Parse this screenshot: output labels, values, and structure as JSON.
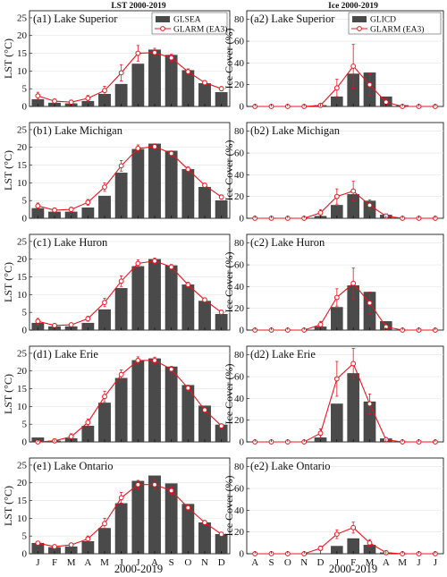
{
  "figure": {
    "left_column_title": "LST 2000-2019",
    "right_column_title": "Ice 2000-2019",
    "left_xlabel": "2000-2019",
    "right_xlabel": "2000-2019",
    "left_ylabel": "LST (°C)",
    "right_ylabel": "Ice Cover (%)",
    "lst_legend_bar": "GLSEA",
    "lst_legend_line": "GLARM (EA3)",
    "ice_legend_bar": "GLICD",
    "ice_legend_line": "GLARM (EA3)",
    "lst_months": [
      "J",
      "F",
      "M",
      "A",
      "M",
      "J",
      "J",
      "A",
      "S",
      "O",
      "N",
      "D"
    ],
    "ice_months": [
      "A",
      "S",
      "O",
      "N",
      "D",
      "J",
      "F",
      "M",
      "A",
      "M",
      "J",
      "J"
    ],
    "lst_yticks": [
      0,
      5,
      10,
      15,
      20,
      25
    ],
    "ice_yticks": [
      0,
      20,
      40,
      60,
      80
    ],
    "colors": {
      "bar": "#4a4a4a",
      "line": "#e8141b"
    }
  },
  "chart_data": [
    {
      "type": "bar",
      "title": "(a1) Lake Superior",
      "categories": [
        "J",
        "F",
        "M",
        "A",
        "M",
        "J",
        "J",
        "A",
        "S",
        "O",
        "N",
        "D"
      ],
      "ylabel": "LST (°C)",
      "ylim": [
        0,
        27
      ],
      "legend": "top-right",
      "series": [
        {
          "name": "GLSEA",
          "values": [
            2.0,
            1.0,
            0.8,
            1.5,
            3.5,
            6.3,
            12.0,
            16.0,
            14.5,
            10.2,
            6.5,
            4.0
          ]
        },
        {
          "name": "GLARM (EA3)",
          "values": [
            3.0,
            1.5,
            1.2,
            2.3,
            4.5,
            9.5,
            15.0,
            15.2,
            13.7,
            9.8,
            6.7,
            5.0
          ],
          "errors": [
            1.0,
            0.6,
            0.6,
            0.8,
            1.2,
            2.3,
            2.2,
            1.2,
            1.0,
            0.8,
            0.6,
            0.6
          ]
        }
      ]
    },
    {
      "type": "bar",
      "title": "(a2) Lake Superior",
      "categories": [
        "A",
        "S",
        "O",
        "N",
        "D",
        "J",
        "F",
        "M",
        "A",
        "M",
        "J",
        "J"
      ],
      "ylabel": "Ice Cover (%)",
      "ylim": [
        0,
        88
      ],
      "legend": "top-right",
      "series": [
        {
          "name": "GLICD",
          "values": [
            0,
            0,
            0,
            0,
            1,
            9,
            30,
            31,
            9,
            1,
            0,
            0
          ]
        },
        {
          "name": "GLARM (EA3)",
          "values": [
            0,
            0,
            0,
            0,
            1,
            17,
            37,
            20,
            4,
            0,
            0,
            0
          ],
          "errors": [
            0,
            0,
            0,
            0,
            1,
            8,
            20,
            10,
            3,
            0,
            0,
            0
          ]
        }
      ]
    },
    {
      "type": "bar",
      "title": "(b1) Lake Michigan",
      "categories": [
        "J",
        "F",
        "M",
        "A",
        "M",
        "J",
        "J",
        "A",
        "S",
        "O",
        "N",
        "D"
      ],
      "ylabel": "LST (°C)",
      "ylim": [
        0,
        27
      ],
      "series": [
        {
          "values": [
            2.8,
            1.8,
            1.8,
            3.0,
            6.3,
            12.8,
            19.5,
            21.0,
            19.0,
            13.8,
            8.8,
            5.0
          ]
        },
        {
          "values": [
            3.5,
            2.3,
            2.5,
            4.5,
            8.8,
            14.8,
            19.7,
            20.2,
            18.3,
            13.8,
            9.3,
            6.0
          ],
          "errors": [
            0.8,
            0.6,
            0.6,
            0.8,
            1.2,
            1.5,
            1.0,
            0.8,
            0.7,
            0.7,
            0.6,
            0.6
          ]
        }
      ]
    },
    {
      "type": "bar",
      "title": "(b2) Lake Michigan",
      "categories": [
        "A",
        "S",
        "O",
        "N",
        "D",
        "J",
        "F",
        "M",
        "A",
        "M",
        "J",
        "J"
      ],
      "ylabel": "Ice Cover (%)",
      "ylim": [
        0,
        88
      ],
      "series": [
        {
          "values": [
            0,
            0,
            0,
            0,
            2,
            12,
            22,
            16,
            3,
            0,
            0,
            0
          ]
        },
        {
          "values": [
            0,
            0,
            0,
            0,
            5,
            20,
            25,
            12,
            2,
            0,
            0,
            0
          ],
          "errors": [
            0,
            0,
            0,
            0,
            3,
            7,
            9,
            5,
            2,
            0,
            0,
            0
          ]
        }
      ]
    },
    {
      "type": "bar",
      "title": "(c1) Lake Huron",
      "categories": [
        "J",
        "F",
        "M",
        "A",
        "M",
        "J",
        "J",
        "A",
        "S",
        "O",
        "N",
        "D"
      ],
      "ylabel": "LST (°C)",
      "ylim": [
        0,
        27
      ],
      "series": [
        {
          "values": [
            2.0,
            1.0,
            1.0,
            2.0,
            5.8,
            11.8,
            18.0,
            20.0,
            18.2,
            12.8,
            8.2,
            4.5
          ]
        },
        {
          "values": [
            2.5,
            1.3,
            1.5,
            3.2,
            7.8,
            13.8,
            18.8,
            19.5,
            17.8,
            12.8,
            8.5,
            5.0
          ],
          "errors": [
            0.8,
            0.5,
            0.5,
            0.7,
            1.2,
            1.5,
            1.0,
            0.8,
            0.7,
            0.7,
            0.6,
            0.6
          ]
        }
      ]
    },
    {
      "type": "bar",
      "title": "(c2) Lake Huron",
      "categories": [
        "A",
        "S",
        "O",
        "N",
        "D",
        "J",
        "F",
        "M",
        "A",
        "M",
        "J",
        "J"
      ],
      "ylabel": "Ice Cover (%)",
      "ylim": [
        0,
        88
      ],
      "series": [
        {
          "values": [
            0,
            0,
            0,
            0,
            3,
            21,
            41,
            35,
            8,
            0,
            0,
            0
          ]
        },
        {
          "values": [
            0,
            0,
            0,
            0,
            5,
            30,
            43,
            25,
            3,
            0,
            0,
            0
          ],
          "errors": [
            0,
            0,
            0,
            0,
            3,
            8,
            14,
            10,
            3,
            0,
            0,
            0
          ]
        }
      ]
    },
    {
      "type": "bar",
      "title": "(d1) Lake Erie",
      "categories": [
        "J",
        "F",
        "M",
        "A",
        "M",
        "J",
        "J",
        "A",
        "S",
        "O",
        "N",
        "D"
      ],
      "ylabel": "LST (°C)",
      "ylim": [
        0,
        27
      ],
      "series": [
        {
          "values": [
            1.2,
            0.3,
            1.0,
            4.5,
            11.0,
            18.0,
            23.0,
            23.5,
            21.2,
            16.0,
            10.2,
            4.8
          ]
        },
        {
          "values": [
            0,
            0.3,
            1.5,
            5.5,
            12.8,
            19.0,
            23.0,
            23.0,
            20.5,
            15.2,
            9.0,
            4.5
          ],
          "errors": [
            0,
            0.5,
            0.8,
            1.0,
            1.5,
            1.3,
            1.0,
            0.9,
            0.8,
            0.8,
            0.7,
            0.6
          ]
        }
      ]
    },
    {
      "type": "bar",
      "title": "(d2) Lake Erie",
      "categories": [
        "A",
        "S",
        "O",
        "N",
        "D",
        "J",
        "F",
        "M",
        "A",
        "M",
        "J",
        "J"
      ],
      "ylabel": "Ice Cover (%)",
      "ylim": [
        0,
        88
      ],
      "series": [
        {
          "values": [
            0,
            0,
            0,
            0,
            4,
            35,
            63,
            37,
            3,
            0,
            0,
            0
          ]
        },
        {
          "values": [
            0,
            0,
            0,
            0,
            8,
            58,
            72,
            35,
            2,
            0,
            0,
            0
          ],
          "errors": [
            0,
            0,
            0,
            0,
            4,
            16,
            14,
            9,
            2,
            0,
            0,
            0
          ]
        }
      ]
    },
    {
      "type": "bar",
      "title": "(e1) Lake Ontario",
      "categories": [
        "J",
        "F",
        "M",
        "A",
        "M",
        "J",
        "J",
        "A",
        "S",
        "O",
        "N",
        "D"
      ],
      "ylabel": "LST (°C)",
      "ylim": [
        0,
        27
      ],
      "series": [
        {
          "values": [
            3.0,
            1.8,
            2.0,
            3.5,
            7.2,
            14.2,
            20.5,
            22.0,
            19.8,
            14.0,
            8.8,
            5.5
          ]
        },
        {
          "values": [
            3.0,
            2.0,
            2.5,
            4.2,
            8.5,
            15.8,
            19.5,
            19.5,
            17.8,
            13.0,
            8.8,
            5.5
          ],
          "errors": [
            0.5,
            0.5,
            0.5,
            0.8,
            1.5,
            1.5,
            1.2,
            1.5,
            1.0,
            0.8,
            0.6,
            0.5
          ]
        }
      ]
    },
    {
      "type": "bar",
      "title": "(e2) Lake Ontario",
      "categories": [
        "A",
        "S",
        "O",
        "N",
        "D",
        "J",
        "F",
        "M",
        "A",
        "M",
        "J",
        "J"
      ],
      "ylabel": "Ice Cover (%)",
      "ylim": [
        0,
        88
      ],
      "series": [
        {
          "values": [
            0,
            0,
            0,
            0,
            0,
            7,
            14,
            8,
            1,
            0,
            0,
            0
          ]
        },
        {
          "values": [
            0,
            0,
            0,
            0,
            5,
            18,
            24,
            10,
            1,
            0,
            0,
            0
          ],
          "errors": [
            0,
            0,
            0,
            0,
            2,
            4,
            5,
            3,
            1,
            0,
            0,
            0
          ]
        }
      ]
    }
  ]
}
